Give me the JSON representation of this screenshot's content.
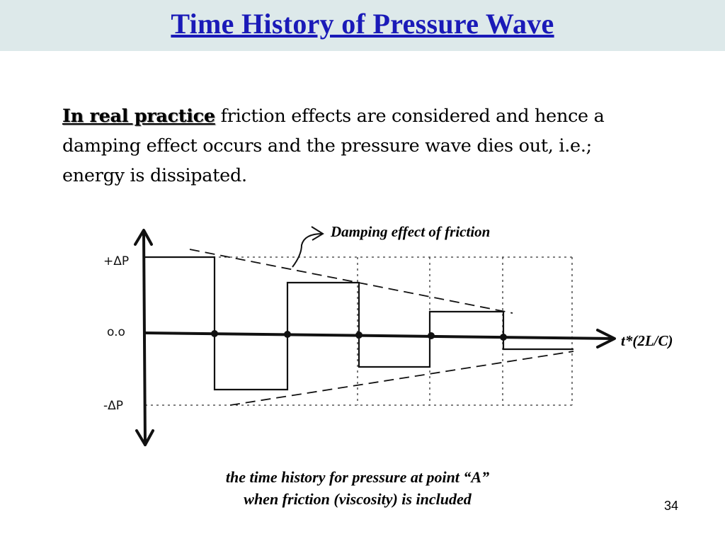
{
  "slide": {
    "title": "Time History of Pressure Wave",
    "paragraph": {
      "emphasis": "In real practice",
      "rest": " friction effects are considered and hence a damping effect occurs and the pressure wave dies out, i.e.; energy is dissipated."
    },
    "caption": {
      "line1": "the time history for pressure at point  “A”",
      "line2": "when friction (viscosity) is included"
    },
    "page_number": "34"
  },
  "diagram": {
    "y_labels": {
      "top": "+ΔP",
      "middle": "o.o",
      "bottom": "-ΔP"
    },
    "x_axis_label": "t*(2L/C)",
    "annotation": "Damping effect of friction"
  },
  "colors": {
    "title": "#1a1ab8",
    "title_bar": "#dde9ea",
    "ink": "#111111"
  }
}
